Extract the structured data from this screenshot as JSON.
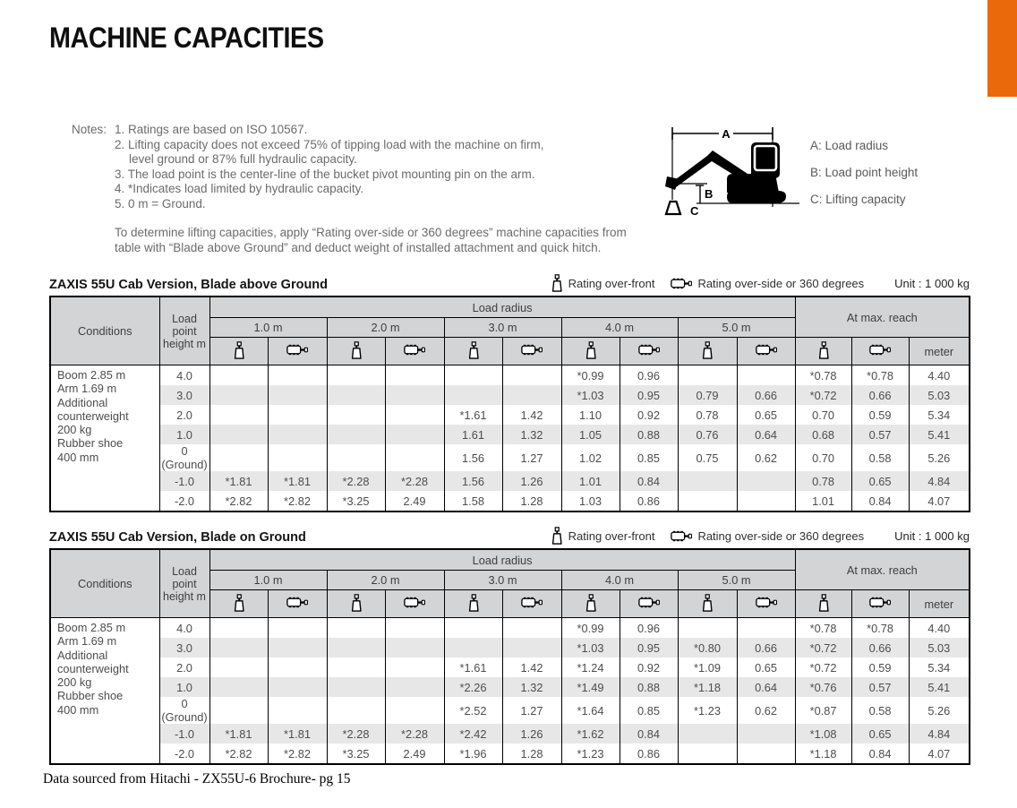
{
  "accent_color": "#EA690B",
  "page": {
    "title": "MACHINE CAPACITIES",
    "source": "Data sourced from Hitachi - ZX55U-6 Brochure- pg 15"
  },
  "notes": {
    "label": "Notes:",
    "items": [
      "1. Ratings are based on ISO 10567.",
      "2. Lifting capacity does not exceed 75% of tipping load with the machine on firm, level ground or 87% full hydraulic capacity.",
      "3. The load point is the center-line of the bucket pivot mounting pin on the arm.",
      "4. *Indicates load limited by hydraulic capacity.",
      "5. 0 m = Ground."
    ],
    "paragraph": "To determine lifting capacities, apply “Rating over-side or 360 degrees” machine capacities from table with “Blade above Ground” and deduct weight of installed attachment and quick hitch."
  },
  "diagram": {
    "dimension_labels": {
      "a": "A",
      "b": "B",
      "c": "C"
    },
    "legend": [
      "A: Load radius",
      "B: Load point height",
      "C: Lifting capacity"
    ]
  },
  "header": {
    "conditions": "Conditions",
    "load_point_height": "Load point height m",
    "load_radius": "Load radius",
    "radii": [
      "1.0 m",
      "2.0 m",
      "3.0 m",
      "4.0 m",
      "5.0 m"
    ],
    "at_max_reach": "At max. reach",
    "meter": "meter",
    "icons": {
      "front": "rating-over-front-icon (hanging weight)",
      "side": "rating-over-side-360-icon (machine top view with side boom)"
    }
  },
  "tables": [
    {
      "title": "ZAXIS 55U Cab Version, Blade above Ground",
      "legend": {
        "front": "Rating over-front",
        "side": "Rating over-side or 360 degrees",
        "unit": "Unit : 1 000 kg"
      },
      "conditions": "Boom 2.85 m\nArm 1.69 m\nAdditional\ncounterweight\n200 kg\nRubber shoe\n400 mm",
      "rows": [
        {
          "height": "4.0",
          "values": [
            "",
            "",
            "",
            "",
            "",
            "",
            "*0.99",
            "0.96",
            "",
            "",
            "*0.78",
            "*0.78",
            "4.40"
          ]
        },
        {
          "height": "3.0",
          "values": [
            "",
            "",
            "",
            "",
            "",
            "",
            "*1.03",
            "0.95",
            "0.79",
            "0.66",
            "*0.72",
            "0.66",
            "5.03"
          ]
        },
        {
          "height": "2.0",
          "values": [
            "",
            "",
            "",
            "",
            "*1.61",
            "1.42",
            "1.10",
            "0.92",
            "0.78",
            "0.65",
            "0.70",
            "0.59",
            "5.34"
          ]
        },
        {
          "height": "1.0",
          "values": [
            "",
            "",
            "",
            "",
            "1.61",
            "1.32",
            "1.05",
            "0.88",
            "0.76",
            "0.64",
            "0.68",
            "0.57",
            "5.41"
          ]
        },
        {
          "height": "0 (Ground)",
          "values": [
            "",
            "",
            "",
            "",
            "1.56",
            "1.27",
            "1.02",
            "0.85",
            "0.75",
            "0.62",
            "0.70",
            "0.58",
            "5.26"
          ]
        },
        {
          "height": "-1.0",
          "values": [
            "*1.81",
            "*1.81",
            "*2.28",
            "*2.28",
            "1.56",
            "1.26",
            "1.01",
            "0.84",
            "",
            "",
            "0.78",
            "0.65",
            "4.84"
          ]
        },
        {
          "height": "-2.0",
          "values": [
            "*2.82",
            "*2.82",
            "*3.25",
            "2.49",
            "1.58",
            "1.28",
            "1.03",
            "0.86",
            "",
            "",
            "1.01",
            "0.84",
            "4.07"
          ]
        }
      ]
    },
    {
      "title": "ZAXIS 55U Cab Version, Blade on Ground",
      "legend": {
        "front": "Rating over-front",
        "side": "Rating over-side or 360 degrees",
        "unit": "Unit : 1 000 kg"
      },
      "conditions": "Boom 2.85 m\nArm 1.69 m\nAdditional\ncounterweight\n200 kg\nRubber shoe\n400 mm",
      "rows": [
        {
          "height": "4.0",
          "values": [
            "",
            "",
            "",
            "",
            "",
            "",
            "*0.99",
            "0.96",
            "",
            "",
            "*0.78",
            "*0.78",
            "4.40"
          ]
        },
        {
          "height": "3.0",
          "values": [
            "",
            "",
            "",
            "",
            "",
            "",
            "*1.03",
            "0.95",
            "*0.80",
            "0.66",
            "*0.72",
            "0.66",
            "5.03"
          ]
        },
        {
          "height": "2.0",
          "values": [
            "",
            "",
            "",
            "",
            "*1.61",
            "1.42",
            "*1.24",
            "0.92",
            "*1.09",
            "0.65",
            "*0.72",
            "0.59",
            "5.34"
          ]
        },
        {
          "height": "1.0",
          "values": [
            "",
            "",
            "",
            "",
            "*2.26",
            "1.32",
            "*1.49",
            "0.88",
            "*1.18",
            "0.64",
            "*0.76",
            "0.57",
            "5.41"
          ]
        },
        {
          "height": "0 (Ground)",
          "values": [
            "",
            "",
            "",
            "",
            "*2.52",
            "1.27",
            "*1.64",
            "0.85",
            "*1.23",
            "0.62",
            "*0.87",
            "0.58",
            "5.26"
          ]
        },
        {
          "height": "-1.0",
          "values": [
            "*1.81",
            "*1.81",
            "*2.28",
            "*2.28",
            "*2.42",
            "1.26",
            "*1.62",
            "0.84",
            "",
            "",
            "*1.08",
            "0.65",
            "4.84"
          ]
        },
        {
          "height": "-2.0",
          "values": [
            "*2.82",
            "*2.82",
            "*3.25",
            "2.49",
            "*1.96",
            "1.28",
            "*1.23",
            "0.86",
            "",
            "",
            "*1.18",
            "0.84",
            "4.07"
          ]
        }
      ]
    }
  ]
}
